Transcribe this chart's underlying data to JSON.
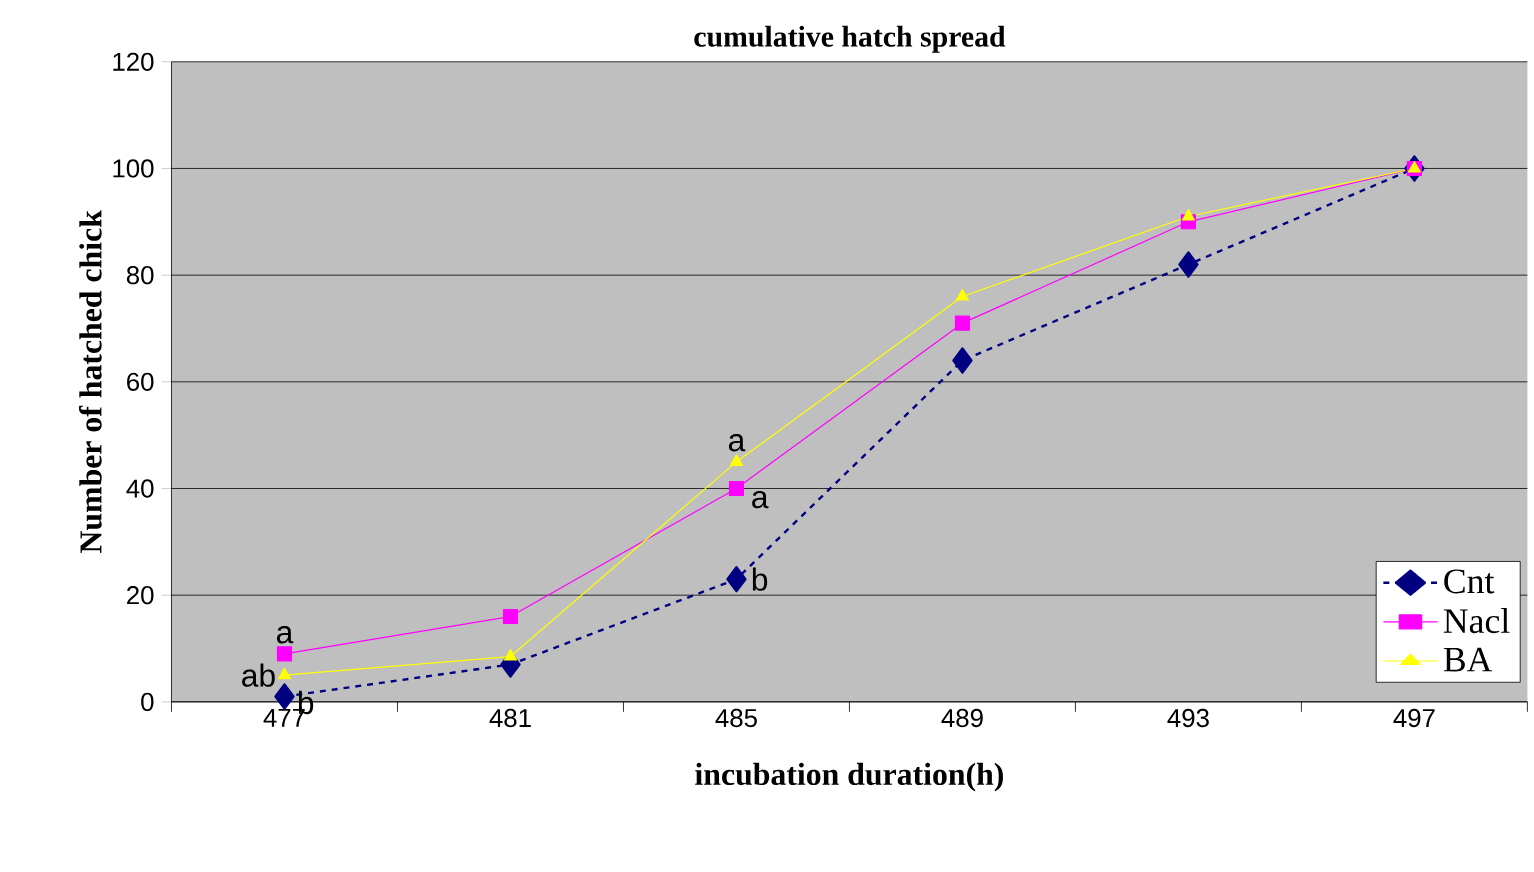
{
  "chart_data": {
    "type": "line",
    "title": "cumulative hatch spread",
    "xlabel": "incubation duration(h)",
    "ylabel": "Number of hatched chick",
    "categories": [
      "477",
      "481",
      "485",
      "489",
      "493",
      "497"
    ],
    "series": [
      {
        "name": "Cnt",
        "color": "#000080",
        "marker": "diamond",
        "line_style": "dashed",
        "values": [
          1,
          7,
          23,
          64,
          82,
          100
        ]
      },
      {
        "name": "Nacl",
        "color": "#ff00ff",
        "marker": "square",
        "line_style": "solid",
        "values": [
          9,
          16,
          40,
          71,
          90,
          100
        ]
      },
      {
        "name": "BA",
        "color": "#ffff00",
        "marker": "triangle",
        "line_style": "solid",
        "values": [
          5,
          8.5,
          45,
          76,
          91,
          100
        ]
      }
    ],
    "ylim": [
      0,
      120
    ],
    "yticks": [
      0,
      20,
      40,
      60,
      80,
      100,
      120
    ],
    "grid": "y",
    "legend": "bottom right",
    "annotations": [
      {
        "text": "a",
        "x": "477",
        "y": 9
      },
      {
        "text": "ab",
        "x": "477",
        "y": 5
      },
      {
        "text": "b",
        "x": "477",
        "y": 1
      },
      {
        "text": "a",
        "x": "485",
        "y": 45
      },
      {
        "text": "a",
        "x": "485",
        "y": 40
      },
      {
        "text": "b",
        "x": "485",
        "y": 23
      }
    ]
  }
}
